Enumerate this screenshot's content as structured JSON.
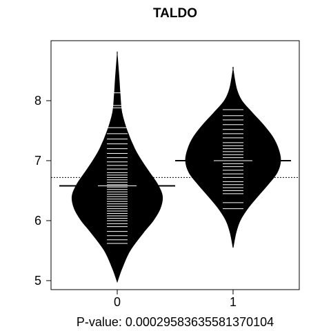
{
  "chart_data": {
    "type": "beanplot",
    "title": "TALDO",
    "xlabel": "P-value: 0.000295836355813701​04",
    "categories": [
      "0",
      "1"
    ],
    "ylim": [
      4.85,
      9.0
    ],
    "yticks": [
      "5",
      "6",
      "7",
      "8"
    ],
    "xticks": [
      "0",
      "1"
    ],
    "overall_mean": 6.72,
    "series": [
      {
        "category": "0",
        "mean": 6.58,
        "range": [
          4.98,
          8.77
        ],
        "density_profile": [
          [
            4.98,
            0.0
          ],
          [
            5.2,
            0.08
          ],
          [
            5.5,
            0.22
          ],
          [
            5.8,
            0.45
          ],
          [
            6.0,
            0.62
          ],
          [
            6.2,
            0.74
          ],
          [
            6.4,
            0.78
          ],
          [
            6.6,
            0.7
          ],
          [
            6.8,
            0.56
          ],
          [
            7.0,
            0.42
          ],
          [
            7.2,
            0.3
          ],
          [
            7.5,
            0.17
          ],
          [
            7.8,
            0.08
          ],
          [
            8.1,
            0.05
          ],
          [
            8.4,
            0.03
          ],
          [
            8.77,
            0.0
          ]
        ],
        "observations": [
          5.62,
          5.68,
          5.75,
          5.82,
          5.9,
          5.95,
          6.0,
          6.04,
          6.08,
          6.12,
          6.16,
          6.2,
          6.24,
          6.28,
          6.32,
          6.36,
          6.4,
          6.44,
          6.48,
          6.52,
          6.56,
          6.6,
          6.64,
          6.68,
          6.72,
          6.76,
          6.8,
          6.86,
          6.92,
          6.98,
          7.05,
          7.12,
          7.2,
          7.28,
          7.36,
          7.45,
          7.55,
          7.88,
          7.92,
          8.13
        ]
      },
      {
        "category": "1",
        "mean": 7.0,
        "range": [
          5.55,
          8.52
        ],
        "density_profile": [
          [
            5.55,
            0.0
          ],
          [
            5.8,
            0.05
          ],
          [
            6.0,
            0.12
          ],
          [
            6.2,
            0.25
          ],
          [
            6.4,
            0.42
          ],
          [
            6.6,
            0.6
          ],
          [
            6.8,
            0.76
          ],
          [
            7.0,
            0.82
          ],
          [
            7.2,
            0.78
          ],
          [
            7.4,
            0.68
          ],
          [
            7.6,
            0.52
          ],
          [
            7.8,
            0.33
          ],
          [
            8.0,
            0.15
          ],
          [
            8.2,
            0.06
          ],
          [
            8.52,
            0.0
          ]
        ],
        "observations": [
          6.2,
          6.3,
          6.45,
          6.5,
          6.55,
          6.6,
          6.65,
          6.72,
          6.78,
          6.84,
          6.9,
          6.95,
          7.0,
          7.05,
          7.1,
          7.15,
          7.2,
          7.25,
          7.3,
          7.38,
          7.45,
          7.52,
          7.6,
          7.68,
          7.75,
          7.85
        ]
      }
    ],
    "grid": false,
    "legend": "none",
    "colors": {
      "bean": "#000000",
      "lines": "#ffffff",
      "axes": "#000000",
      "background": "#ffffff"
    }
  }
}
